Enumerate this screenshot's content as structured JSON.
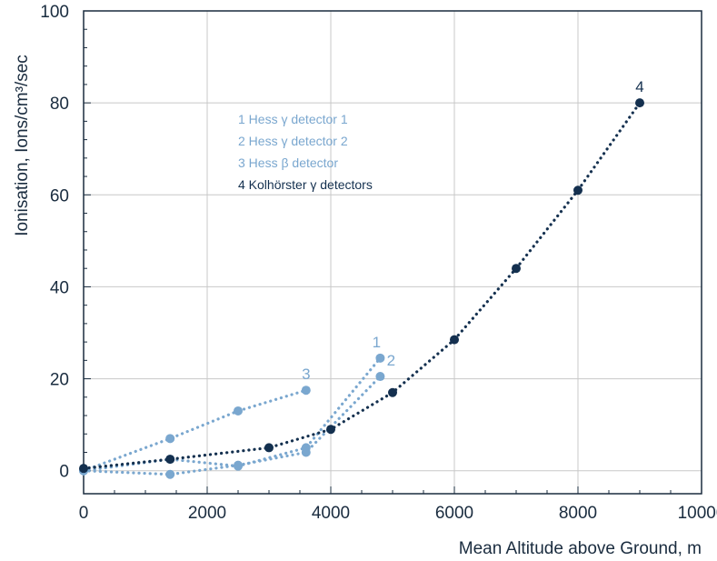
{
  "chart_data": {
    "type": "line",
    "xlabel": "Mean Altitude above Ground, m",
    "ylabel": "Ionisation, Ions/cm³/sec",
    "xlim": [
      0,
      10000
    ],
    "ylim": [
      -5,
      100
    ],
    "x_ticks": [
      0,
      2000,
      4000,
      6000,
      8000,
      10000
    ],
    "y_ticks": [
      0,
      20,
      40,
      60,
      80,
      100
    ],
    "x_tick_labels": [
      "0",
      "2000",
      "4000",
      "6000",
      "8000",
      "10000"
    ],
    "y_tick_labels": [
      "0",
      "20",
      "40",
      "60",
      "80",
      "100"
    ],
    "grid": true,
    "legend_position": "upper-center",
    "legend": [
      "1 Hess γ detector 1",
      "2 Hess γ detector 2",
      "3 Hess β detector",
      "4 Kolhörster γ detectors"
    ],
    "series": [
      {
        "label": "1",
        "color": "#7aa7cf",
        "x": [
          0,
          1400,
          2500,
          3600,
          4800
        ],
        "y": [
          0,
          2.5,
          1,
          5,
          24.5
        ]
      },
      {
        "label": "2",
        "color": "#7aa7cf",
        "x": [
          0,
          1400,
          2500,
          3600,
          4800
        ],
        "y": [
          0,
          -0.8,
          1.2,
          4,
          20.5
        ]
      },
      {
        "label": "3",
        "color": "#7aa7cf",
        "x": [
          0,
          1400,
          2500,
          3600
        ],
        "y": [
          0,
          7,
          13,
          17.5
        ]
      },
      {
        "label": "4",
        "color": "#14304f",
        "x": [
          0,
          1400,
          3000,
          4000,
          5000,
          6000,
          7000,
          8000,
          9000
        ],
        "y": [
          0.5,
          2.5,
          5,
          9,
          17,
          28.5,
          44,
          61,
          80
        ]
      }
    ]
  }
}
